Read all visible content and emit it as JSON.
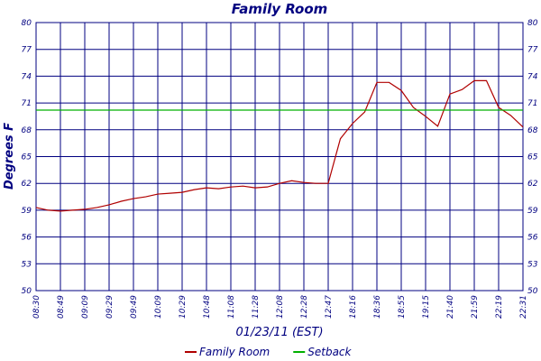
{
  "chart_data": {
    "type": "line",
    "title": "Family Room",
    "y_label": "Degrees F",
    "x_label": "01/23/11 (EST)",
    "categories": [
      "08:30",
      null,
      "08:49",
      null,
      "09:09",
      null,
      "09:29",
      null,
      "09:49",
      null,
      "10:09",
      null,
      "10:29",
      null,
      "10:48",
      null,
      "11:08",
      null,
      "11:28",
      null,
      "12:08",
      null,
      "12:28",
      null,
      "12:47",
      null,
      "18:16",
      null,
      "18:36",
      null,
      "18:55",
      null,
      "19:15",
      null,
      "21:40",
      null,
      "21:59",
      null,
      "22:19",
      null,
      "22:31"
    ],
    "series": [
      {
        "name": "Family Room",
        "color": "#b00000",
        "values": [
          59.3,
          59.0,
          58.9,
          59.0,
          59.1,
          59.3,
          59.6,
          60.0,
          60.3,
          60.5,
          60.8,
          60.9,
          61.0,
          61.3,
          61.5,
          61.4,
          61.6,
          61.7,
          61.5,
          61.6,
          62.0,
          62.3,
          62.1,
          62.0,
          62.0,
          67.0,
          68.7,
          70.0,
          73.3,
          73.3,
          72.4,
          70.5,
          69.5,
          68.4,
          72.0,
          72.5,
          73.5,
          73.5,
          70.5,
          69.6,
          68.3
        ]
      },
      {
        "name": "Setback",
        "color": "#00b000",
        "values": [
          70.2,
          70.2,
          70.2,
          70.2,
          70.2,
          70.2,
          70.2,
          70.2,
          70.2,
          70.2,
          70.2,
          70.2,
          70.2,
          70.2,
          70.2,
          70.2,
          70.2,
          70.2,
          70.2,
          70.2,
          70.2,
          70.2,
          70.2,
          70.2,
          70.2,
          70.2,
          70.2,
          70.2,
          70.2,
          70.2,
          70.2,
          70.2,
          70.2,
          70.2,
          70.2,
          70.2,
          70.2,
          70.2,
          70.2,
          70.2,
          70.2
        ]
      }
    ],
    "ylim": [
      50,
      80
    ],
    "yticks": [
      50,
      53,
      56,
      59,
      62,
      65,
      68,
      71,
      74,
      77,
      80
    ],
    "grid": true,
    "legend": "bottom"
  }
}
